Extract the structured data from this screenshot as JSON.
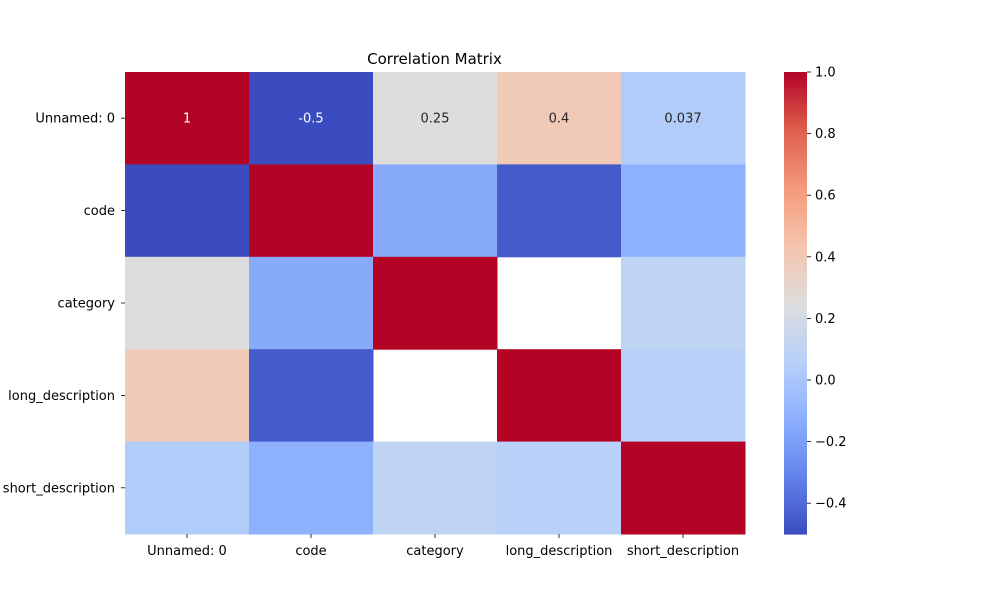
{
  "chart_data": {
    "type": "heatmap",
    "title": "Correlation Matrix",
    "xlabel": "",
    "ylabel": "",
    "x_labels": [
      "Unnamed: 0",
      "code",
      "category",
      "long_description",
      "short_description"
    ],
    "y_labels": [
      "Unnamed: 0",
      "code",
      "category",
      "long_description",
      "short_description"
    ],
    "matrix": [
      [
        1,
        -0.5,
        0.25,
        0.4,
        0.037
      ],
      [
        -0.5,
        1,
        -0.15,
        -0.45,
        -0.12
      ],
      [
        0.25,
        -0.15,
        1,
        null,
        0.1
      ],
      [
        0.4,
        -0.45,
        null,
        1,
        0.07
      ],
      [
        0.037,
        -0.12,
        0.1,
        0.07,
        1
      ]
    ],
    "annotations": [
      {
        "row": 0,
        "col": 0,
        "text": "1"
      },
      {
        "row": 0,
        "col": 1,
        "text": "-0.5"
      },
      {
        "row": 0,
        "col": 2,
        "text": "0.25"
      },
      {
        "row": 0,
        "col": 3,
        "text": "0.4"
      },
      {
        "row": 0,
        "col": 4,
        "text": "0.037"
      }
    ],
    "colormap": "coolwarm",
    "colorbar": {
      "vmin": -0.5,
      "vmax": 1.0,
      "ticks": [
        -0.4,
        -0.2,
        0.0,
        0.2,
        0.4,
        0.6,
        0.8,
        1.0
      ],
      "tick_labels": [
        "−0.4",
        "−0.2",
        "0.0",
        "0.2",
        "0.4",
        "0.6",
        "0.8",
        "1.0"
      ]
    }
  }
}
